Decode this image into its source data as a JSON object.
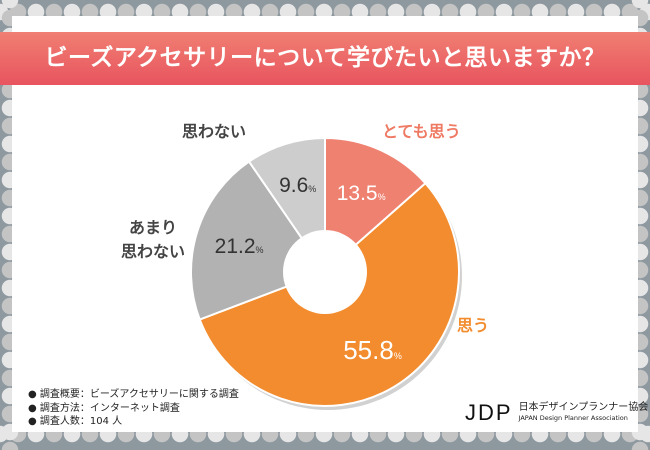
{
  "title": "ビーズアクセサリーについて学びたいと思いますか？",
  "chart_data": {
    "type": "pie",
    "donut": true,
    "title": "ビーズアクセサリーについて学びたいと思いますか？",
    "categories": [
      "とても思う",
      "思う",
      "あまり思わない",
      "思わない"
    ],
    "values": [
      13.5,
      55.8,
      21.2,
      9.6
    ],
    "value_labels": [
      "13.5",
      "55.8",
      "21.2",
      "9.6"
    ],
    "unit": "%",
    "colors": [
      "#ef8170",
      "#f28c2e",
      "#b2b2b2",
      "#cdcdcd"
    ],
    "label_colors": [
      "#ef7a63",
      "#f28c2e",
      "#444444",
      "#444444"
    ],
    "start": "top",
    "direction": "clockwise"
  },
  "notes": [
    "● 調査概要：ビーズアクセサリーに関する調査",
    "● 調査方法：インターネット調査",
    "● 調査人数：104 人"
  ],
  "logo": {
    "mark": "JDP",
    "name": "日本デザインプランナー協会",
    "en": "JAPAN Design Planner Association"
  }
}
